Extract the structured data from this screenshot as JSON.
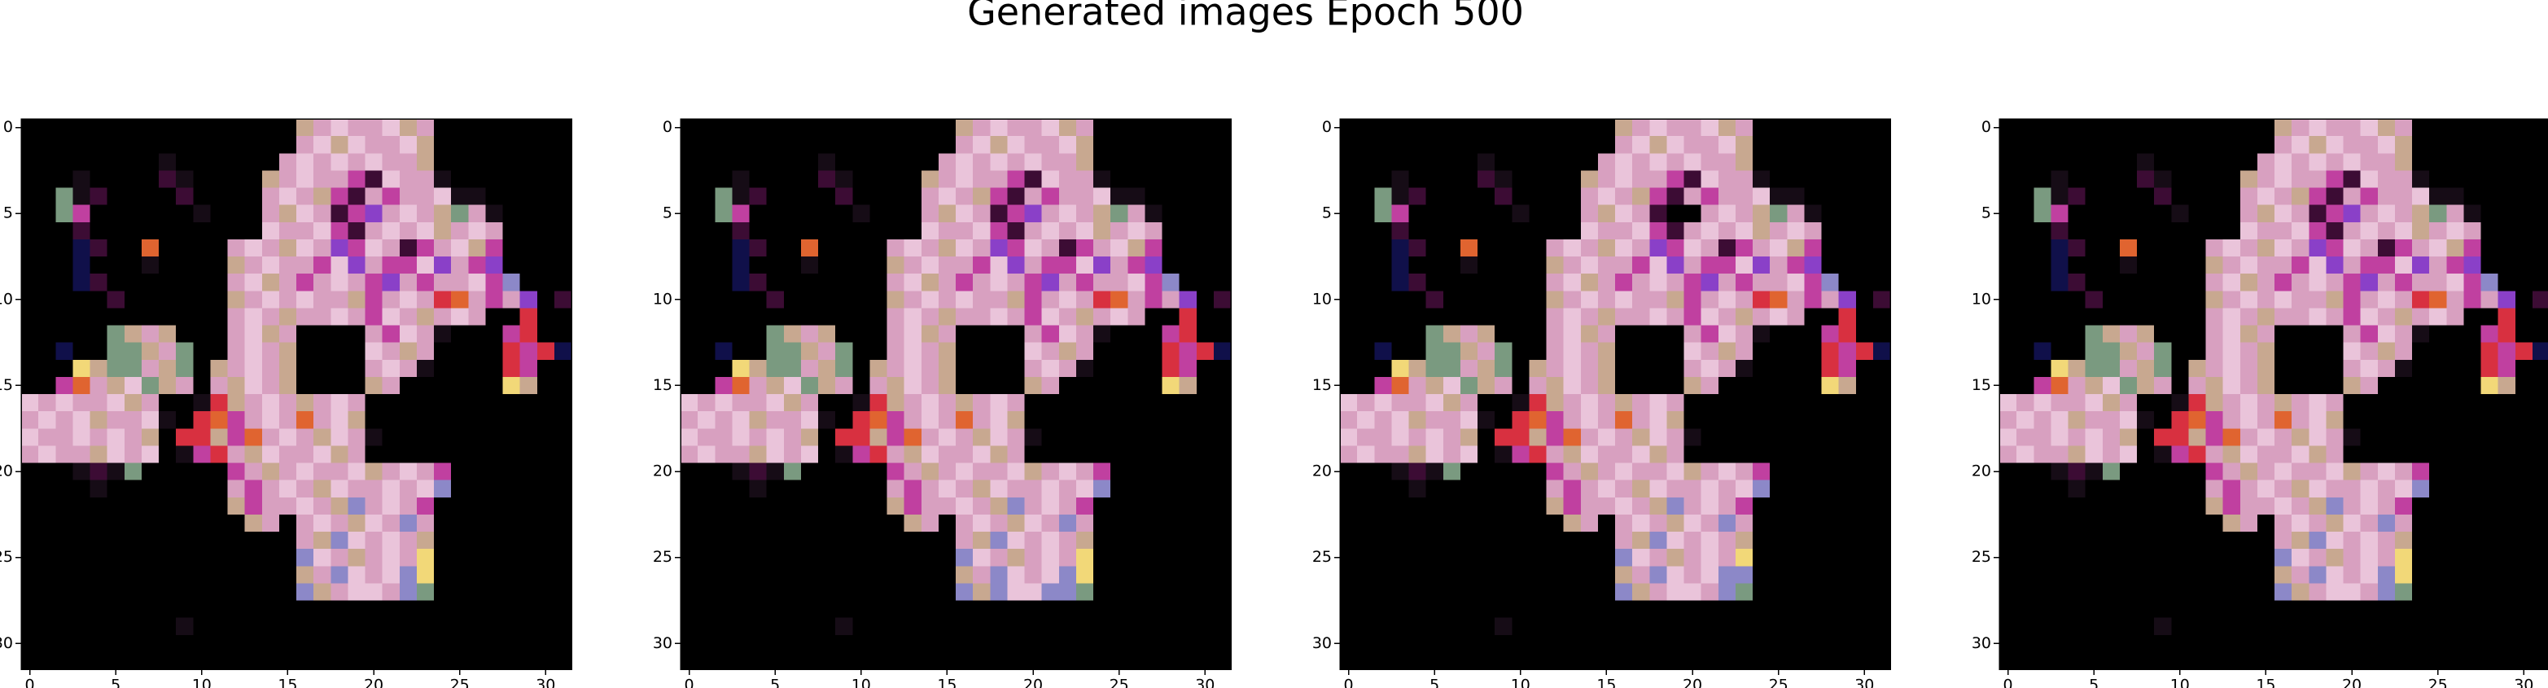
{
  "chart_data": {
    "type": "image",
    "title": "Generated images Epoch 500",
    "palette": {
      "K": "#000000",
      "D": "#160c16",
      "U": "#3c0c34",
      "N": "#10104a",
      "P": "#d8a0c0",
      "L": "#eac4da",
      "B": "#c8a890",
      "G": "#7a9a80",
      "M": "#c040a0",
      "V": "#8a40c8",
      "S": "#8c88c8",
      "R": "#d83040",
      "O": "#e06430",
      "Y": "#f2d878"
    },
    "xlim": [
      -0.5,
      31.5
    ],
    "ylim": [
      31.5,
      -0.5
    ],
    "xticks": [
      0,
      5,
      10,
      15,
      20,
      25,
      30
    ],
    "yticks": [
      0,
      5,
      10,
      15,
      20,
      25,
      30
    ],
    "panels": [
      {
        "rows": [
          "KKKKKKKKKKKKKKKKBPLPPLBPKKKKKKKK",
          "KKKKKKKKKKKKKKKKPLBLPPLBKKKKKKKK",
          "KKKKKKKKDKKKKKKPLPLPLPPBKKKKKKKK",
          "KKKDKKKKUDKKKKBPLPPMULPPDKKKKKKK",
          "KKGDUKKKKUKKKKPLPBMUPMPPLDDKKKKK",
          "KKGMKKKKKKDKKKPBLPUMVPLPBGPDKKKK",
          "KKKUKKKKKKKKKKLPPLMUPLPLBPLPKKKK",
          "KKKNUKKOKKKKPLPBLPVMLPUMPLBMKKKK",
          "KKKNKKKDKKKKBPLPPMLVPMMLVPMVKKKK",
          "KKKNUKKKKKKKPLBPMPLPMVPMPPLMSKKK",
          "KKKKKUKKKKKKBPLPLPPBMPLPROPMPVKU",
          "KKKKKKKKKKKKPLPBPPLPMLPBPLPKKRKK",
          "KKKKKGBPBKKKPLBPKKKKPMLPDKKKMRKK",
          "KKNKKGGBPGKKPLPBKKKKLPBPKKKKRMRN",
          "KKKYBGGPBGKBPLPBKKKKPLPDKKKKRMKK",
          "KKMOPBLGBPKPBLPBKKKKBPKKKKKKYBKK",
          "LPLPPLBPKKDRBPLPBPLPKKKKKKKKKKKK",
          "PLPLBPPLDKROMPLPOPLBKKKKKKKKKKKK",
          "LPPLPLPBKRRBMOPLPBLPDKKKKKKKKKKK",
          "PLPPBLPLKDMRPBLPPLBPKKKKKKKKKKKK",
          "KKKDUDGKKKKKMPBPLPPLBPLPMKKKKKKK",
          "KKKKDKKKKKKKPMPLPBLPPLPLSKKKKKKK",
          "KKKKKKKKKKKKBMPPLPBSPLPMKKKKKKKK",
          "KKKKKKKKKKKKKBPKPLPBLPSPKKKKKKKK",
          "KKKKKKKKKKKKKKKKPBSLPLPBKKKKKKKK",
          "KKKKKKKKKKKKKKKKSLPBPLPYKKKKKKKK",
          "KKKKKKKKKKKKKKKKBPSLPLSYKKKKKKKK",
          "KKKKKKKKKKKKKKKKSBPLLPSGKKKKKKKK",
          "KKKKKKKKKKKKKKKKKKKKKKKKKKKKKKKK",
          "KKKKKKKKKDKKKKKKKKKKKKKKKKKKKKKK",
          "KKKKKKKKKKKKKKKKKKKKKKKKKKKKKKKK",
          "KKKKKKKKKKKKKKKKKKKKKKKKKKKKKKKK"
        ]
      },
      {
        "rows": [
          "KKKKKKKKKKKKKKKKBPLPPLBPKKKKKKKK",
          "KKKKKKKKKKKKKKKKPLBLPPLBKKKKKKKK",
          "KKKKKKKKDKKKKKKPLPLPLPPBKKKKKKKK",
          "KKKDKKKKUDKKKKBPLPPMULPPDKKKKKKK",
          "KKGDUKKKKUKKKKPLPBMUPMPPLDDKKKKK",
          "KKGMKKKKKKDKKKPBLPUMVPLPBGPDKKKK",
          "KKKUKKKKKKKKKKLPPLMUPLPLBPLPKKKK",
          "KKKNUKKOKKKKPLPBLPVMLPUMPLBMKKKK",
          "KKKNKKKDKKKKBPLPPMLVPMMLVPMVKKKK",
          "KKKNUKKKKKKKPLBPMPLPMVPMPPLMSKKK",
          "KKKKKUKKKKKKBPLPLPPBMPLPROPMPVKU",
          "KKKKKKKKKKKKPLPBPPLPMLPBPLPKKRKK",
          "KKKKKGBPBKKKPLBPKKKKPMLPDKKKMRKK",
          "KKNKKGGBPGKKPLPBKKKKLPBPKKKKRMRN",
          "KKKYBGGPBGKBPLPBKKKKPLPDKKKKRMKK",
          "KKMOPBLGBPKPBLPBKKKKBPKKKKKKYBKK",
          "LPLPPLBPKKDRBPLPBPLPKKKKKKKKKKKK",
          "PLPLBPPLDKROMPLPOPLBKKKKKKKKKKKK",
          "LPPLPLPBKRRBMOPLPBLPDKKKKKKKKKKK",
          "PLPPBLPLKDMRPBLPPLBPKKKKKKKKKKKK",
          "KKKDUDGKKKKKMPBPLPPLBPLPMKKKKKKK",
          "KKKKDKKKKKKKPMPLPBLPPLPLSKKKKKKK",
          "KKKKKKKKKKKKBMPPLPBSPLPMKKKKKKKK",
          "KKKKKKKKKKKKKBPKPLPBLPSPKKKKKKKK",
          "KKKKKKKKKKKKKKKKPBSLPLPBKKKKKKKK",
          "KKKKKKKKKKKKKKKKSLPBPLPYKKKKKKKK",
          "KKKKKKKKKKKKKKKKBPSLPLSYKKKKKKKK",
          "KKKKKKKKKKKKKKKKSBSLLSSGKKKKKKKK",
          "KKKKKKKKKKKKKKKKKKKKKKKKKKKKKKKK",
          "KKKKKKKKKDKKKKKKKKKKKKKKKKKKKKKK",
          "KKKKKKKKKKKKKKKKKKKKKKKKKKKKKKKK",
          "KKKKKKKKKKKKKKKKKKKKKKKKKKKKKKKK"
        ]
      },
      {
        "rows": [
          "KKKKKKKKKKKKKKKKBPLPPLBPKKKKKKKK",
          "KKKKKKKKKKKKKKKKPLBLPPLBKKKKKKKK",
          "KKKKKKKKDKKKKKKPLPLPLPPBKKKKKKKK",
          "KKKDKKKKUDKKKKBPLPPMULPPDKKKKKKK",
          "KKGDUKKKKUKKKKPLPBMUPMPPLDDKKKKK",
          "KKGMKKKKKKDKKKPBLPUKKPLPBGPDKKKK",
          "KKKUKKKKKKKKKKLPPLMUPLPLBPLPKKKK",
          "KKKNUKKOKKKKPLPBLPVMLPUMPLBMKKKK",
          "KKKNKKKDKKKKBPLPPMLVPMMLVPMVKKKK",
          "KKKNUKKKKKKKPLBPMPLPMVPMPPLMSKKK",
          "KKKKKUKKKKKKBPLPLPPBMPLPROPMPVKU",
          "KKKKKKKKKKKKPLPBPPLPMLPBPLPKKRKK",
          "KKKKKGBPBKKKPLBPKKKKPMLPDKKKMRKK",
          "KKNKKGGBPGKKPLPBKKKKLPBPKKKKRMRN",
          "KKKYBGGPBGKBPLPBKKKKPLPDKKKKRMKK",
          "KKMOPBLGBPKPBLPBKKKKBPKKKKKKYBKK",
          "LPLPPLBPKKDRBPLPBPLPKKKKKKKKKKKK",
          "PLPLBPPLDKROMPLPOPLBKKKKKKKKKKKK",
          "LPPLPLPBKRRBMOPLPBLPDKKKKKKKKKKK",
          "PLPPBLPLKDMRPBLPPLBPKKKKKKKKKKKK",
          "KKKDUDGKKKKKMPBPLPPLBPLPMKKKKKKK",
          "KKKKDKKKKKKKPMPLPBLPPLPLSKKKKKKK",
          "KKKKKKKKKKKKBMPPLPBSPLPMKKKKKKKK",
          "KKKKKKKKKKKKKBPKPLPBLPSPKKKKKKKK",
          "KKKKKKKKKKKKKKKKPBSLPLPBKKKKKKKK",
          "KKKKKKKKKKKKKKKKSLPBPLPYKKKKKKKK",
          "KKKKKKKKKKKKKKKKBPSLPLSSKKKKKKKK",
          "KKKKKKKKKKKKKKKKSBPLLPSGKKKKKKKK",
          "KKKKKKKKKKKKKKKKKKKKKKKKKKKKKKKK",
          "KKKKKKKKKDKKKKKKKKKKKKKKKKKKKKKK",
          "KKKKKKKKKKKKKKKKKKKKKKKKKKKKKKKK",
          "KKKKKKKKKKKKKKKKKKKKKKKKKKKKKKKK"
        ]
      },
      {
        "rows": [
          "KKKKKKKKKKKKKKKKBPLPPLBPKKKKKKKK",
          "KKKKKKKKKKKKKKKKPLBLPPLBKKKKKKKK",
          "KKKKKKKKDKKKKKKPLPLPLPPBKKKKKKKK",
          "KKKDKKKKUDKKKKBPLPPMULPPDKKKKKKK",
          "KKGDUKKKKUKKKKPLPBMUPMPPLDDKKKKK",
          "KKGMKKKKKKDKKKPBLPUMVPLPBGPDKKKK",
          "KKKUKKKKKKKKKKLPPLMUPLPLBPLPKKKK",
          "KKKNUKKOKKKKPLPBLPVMLPUMPLBMKKKK",
          "KKKNKKKDKKKKBPLPPMLVPMMLVPMVKKKK",
          "KKKNUKKKKKKKPLBPMPLPMVPMPPLMSKKK",
          "KKKKKUKKKKKKBPLPLPPBMPLPROPMPVKU",
          "KKKKKKKKKKKKPLPBPPLPMLPBPLPKKRKK",
          "KKKKKGBPBKKKPLBPKKKKPMLPDKKKMRKK",
          "KKNKKGGBPGKKPLPBKKKKLPBPKKKKRMRN",
          "KKKYBGGPBGKBPLPBKKKKPLPDKKKKRMKK",
          "KKMOPBLGBPKPBLPBKKKKBPKKKKKKYBKK",
          "LPLPPLBPKKDRBPLPBPLPKKKKKKKKKKKK",
          "PLPLBPPLDKROMPLPOPLBKKKKKKKKKKKK",
          "LPPLPLPBKRRBMOPLPBLPDKKKKKKKKKKK",
          "PLPPBLPLKDMRPBLPPLBPKKKKKKKKKKKK",
          "KKKDUDGKKKKKMPBPLPPLBPLPMKKKKKKK",
          "KKKKDKKKKKKKPMPLPBLPPLPLSKKKKKKK",
          "KKKKKKKKKKKKBMPPLPBSPLPMKKKKKKKK",
          "KKKKKKKKKKKKKBPKPLPBLPSPKKKKKKKK",
          "KKKKKKKKKKKKKKKKPBSLPLPBKKKKKKKK",
          "KKKKKKKKKKKKKKKKSLPBPLPYKKKKKKKK",
          "KKKKKKKKKKKKKKKKBPSLPLSYKKKKKKKK",
          "KKKKKKKKKKKKKKKKSBPLLPSGKKKKKKKK",
          "KKKKKKKKKKKKKKKKKKKKKKKKKKKKKKKK",
          "KKKKKKKKKDKKKKKKKKKKKKKKKKKKKKKK",
          "KKKKKKKKKKKKKKKKKKKKKKKKKKKKKKKK",
          "KKKKKKKKKKKKKKKKKKKKKKKKKKKKKKKK"
        ]
      }
    ]
  }
}
